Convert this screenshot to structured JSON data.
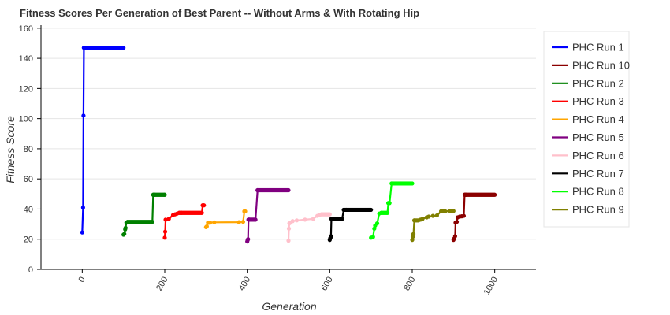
{
  "chart_data": {
    "type": "line",
    "title": "Fitness Scores Per Generation of Best Parent -- Without Arms & With Rotating Hip",
    "xlabel": "Generation",
    "ylabel": "Fitness Score",
    "xlim": [
      -100,
      1100
    ],
    "ylim": [
      0,
      162
    ],
    "xticks": [
      0,
      200,
      400,
      600,
      800,
      1000
    ],
    "yticks": [
      0,
      20,
      40,
      60,
      80,
      100,
      120,
      140,
      160
    ],
    "grid": true,
    "legend_position": "right",
    "series": [
      {
        "name": "PHC Run 1",
        "color": "#0000ff",
        "x": [
          0,
          2,
          3,
          4,
          100
        ],
        "y": [
          24.5,
          41,
          102,
          147,
          147
        ]
      },
      {
        "name": "PHC Run 10",
        "color": "#8b0000",
        "x": [
          900,
          902,
          904,
          905,
          908,
          910,
          915,
          920,
          925,
          927,
          930,
          1000
        ],
        "y": [
          19.5,
          20.5,
          22,
          31,
          31.5,
          34.5,
          35,
          35.2,
          35.5,
          49.5,
          49.5,
          49.5
        ]
      },
      {
        "name": "PHC Run 2",
        "color": "#008000",
        "x": [
          100,
          102,
          104,
          105,
          107,
          110,
          170,
          172,
          175,
          200
        ],
        "y": [
          23,
          23.5,
          26.5,
          27.5,
          31,
          31.5,
          31.5,
          49.5,
          49.5,
          49.5
        ]
      },
      {
        "name": "PHC Run 3",
        "color": "#ff0000",
        "x": [
          200,
          201,
          202,
          210,
          220,
          225,
          230,
          235,
          240,
          290,
          292,
          295
        ],
        "y": [
          21,
          25,
          33,
          33.5,
          36,
          36.5,
          37,
          37.5,
          37.5,
          37.5,
          42.5,
          42.5
        ]
      },
      {
        "name": "PHC Run 4",
        "color": "#ffa500",
        "x": [
          300,
          302,
          305,
          310,
          320,
          380,
          390,
          393,
          395
        ],
        "y": [
          28,
          28.5,
          31,
          31,
          31.2,
          31.3,
          31.5,
          38.5,
          38.5
        ]
      },
      {
        "name": "PHC Run 5",
        "color": "#800080",
        "x": [
          400,
          401,
          402,
          403,
          405,
          420,
          425,
          500
        ],
        "y": [
          18.5,
          19.5,
          20,
          33,
          33,
          33,
          52.5,
          52.5
        ]
      },
      {
        "name": "PHC Run 6",
        "color": "#ffc0cb",
        "x": [
          500,
          501,
          502,
          505,
          510,
          520,
          540,
          560,
          570,
          575,
          580,
          600
        ],
        "y": [
          19,
          27,
          30.5,
          31,
          32,
          32.5,
          33,
          33.5,
          35.5,
          36,
          36.5,
          36.5
        ]
      },
      {
        "name": "PHC Run 7",
        "color": "#000000",
        "x": [
          600,
          601,
          602,
          603,
          604,
          610,
          630,
          634,
          640,
          700
        ],
        "y": [
          19.5,
          20.5,
          21,
          22,
          33.5,
          33.5,
          33.5,
          39.5,
          39.5,
          39.5
        ]
      },
      {
        "name": "PHC Run 8",
        "color": "#00ff00",
        "x": [
          700,
          705,
          708,
          710,
          715,
          720,
          725,
          740,
          742,
          745,
          750,
          800
        ],
        "y": [
          21,
          21.5,
          27,
          29,
          30.5,
          37,
          37.5,
          37.5,
          44,
          44,
          57,
          57
        ]
      },
      {
        "name": "PHC Run 9",
        "color": "#808000",
        "x": [
          800,
          801,
          802,
          803,
          805,
          815,
          820,
          825,
          835,
          840,
          850,
          860,
          870,
          880,
          890,
          900
        ],
        "y": [
          19.5,
          21.5,
          23,
          23.5,
          32.5,
          32.5,
          33,
          33.5,
          34.5,
          35,
          35.5,
          35.8,
          38.5,
          38.5,
          38.7,
          38.7
        ]
      }
    ]
  }
}
